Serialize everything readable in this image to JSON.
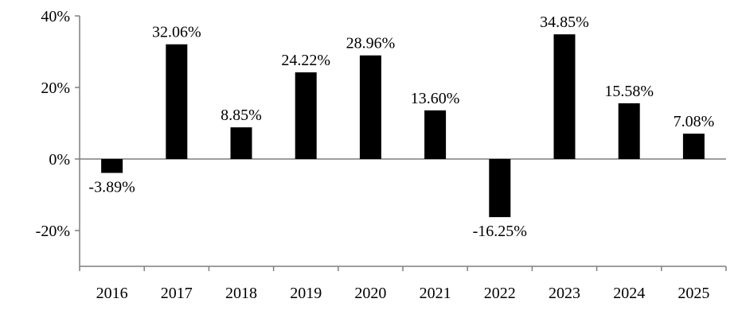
{
  "chart_data": {
    "type": "bar",
    "title": "",
    "xlabel": "",
    "ylabel": "",
    "categories": [
      "2016",
      "2017",
      "2018",
      "2019",
      "2020",
      "2021",
      "2022",
      "2023",
      "2024",
      "2025"
    ],
    "values": [
      -3.89,
      32.06,
      8.85,
      24.22,
      28.96,
      13.6,
      -16.25,
      34.85,
      15.58,
      7.08
    ],
    "value_labels": [
      "-3.89%",
      "32.06%",
      "8.85%",
      "24.22%",
      "28.96%",
      "13.60%",
      "-16.25%",
      "34.85%",
      "15.58%",
      "7.08%"
    ],
    "y_ticks": [
      40,
      20,
      0,
      -20
    ],
    "y_tick_labels": [
      "40%",
      "20%",
      "0%",
      "-20%"
    ],
    "ylim": [
      -30,
      40
    ],
    "grid": false,
    "legend": "none",
    "bar_color": "#000000",
    "axis_color": "#7f7f7f"
  }
}
